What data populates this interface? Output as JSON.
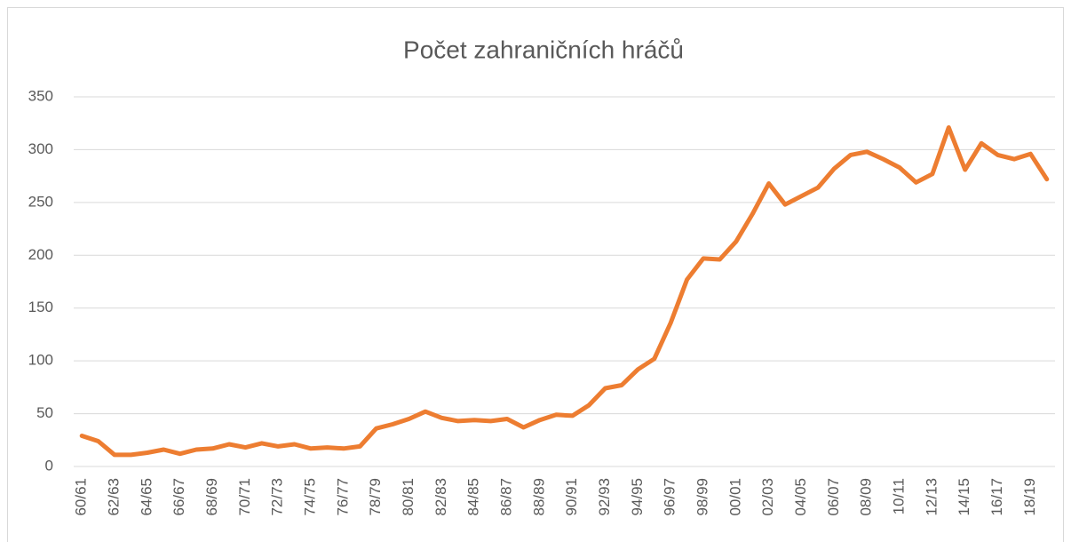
{
  "chart_data": {
    "type": "line",
    "title": "Počet zahraničních hráčů",
    "categories": [
      "60/61",
      null,
      "62/63",
      null,
      "64/65",
      null,
      "66/67",
      null,
      "68/69",
      null,
      "70/71",
      null,
      "72/73",
      null,
      "74/75",
      null,
      "76/77",
      null,
      "78/79",
      null,
      "80/81",
      null,
      "82/83",
      null,
      "84/85",
      null,
      "86/87",
      null,
      "88/89",
      null,
      "90/91",
      null,
      "92/93",
      null,
      "94/95",
      null,
      "96/97",
      null,
      "98/99",
      null,
      "00/01",
      null,
      "02/03",
      null,
      "04/05",
      null,
      "06/07",
      null,
      "08/09",
      null,
      "10/11",
      null,
      "12/13",
      null,
      "14/15",
      null,
      "16/17",
      null,
      "18/19",
      null
    ],
    "values": [
      29,
      24,
      11,
      11,
      13,
      16,
      12,
      16,
      17,
      21,
      18,
      22,
      19,
      21,
      17,
      18,
      17,
      19,
      36,
      40,
      45,
      52,
      46,
      43,
      44,
      43,
      45,
      37,
      44,
      49,
      48,
      58,
      74,
      77,
      92,
      102,
      136,
      177,
      197,
      196,
      213,
      239,
      268,
      248,
      256,
      264,
      282,
      295,
      298,
      291,
      283,
      269,
      277,
      321,
      281,
      306,
      295,
      291,
      296,
      272
    ],
    "color": "#ed7d31",
    "ylim": [
      0,
      350
    ],
    "yticks": [
      0,
      50,
      100,
      150,
      200,
      250,
      300,
      350
    ],
    "grid": true
  }
}
